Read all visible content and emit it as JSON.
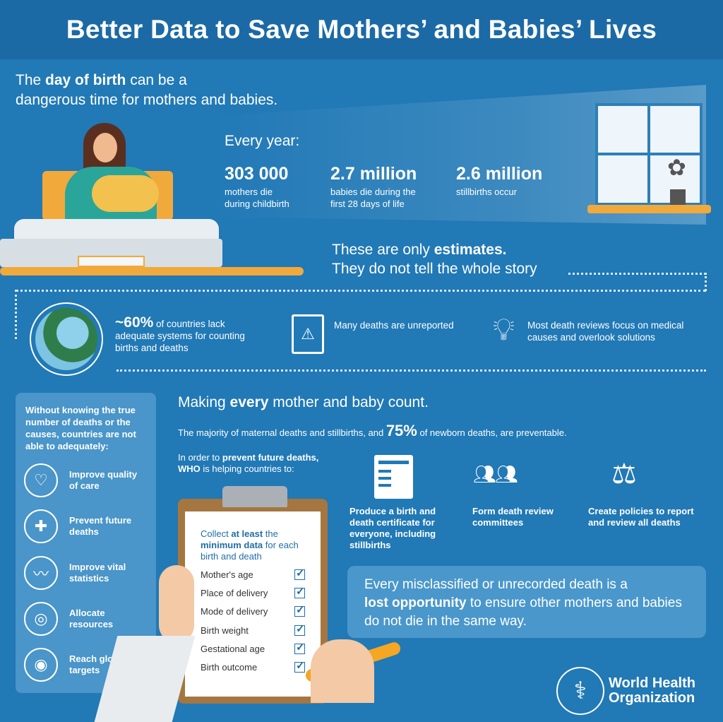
{
  "title": "Better Data to Save Mothers’ and Babies’ Lives",
  "intro": {
    "pre": "The ",
    "bold": "day of birth",
    "post": " can be a",
    "line2": "dangerous time for mothers and babies."
  },
  "every_year": "Every year:",
  "stats": [
    {
      "num": "303 000",
      "label1": "mothers die",
      "label2": "during childbirth"
    },
    {
      "num": "2.7 million",
      "label1": "babies die during the",
      "label2": "first 28 days of life"
    },
    {
      "num": "2.6 million",
      "label1": "stillbirths occur",
      "label2": ""
    }
  ],
  "estimates": {
    "pre": "These are only ",
    "bold": "estimates.",
    "line2": "They do not tell the whole story"
  },
  "facts": [
    {
      "bold": "~60%",
      "text": " of countries lack adequate systems for counting births and deaths",
      "icon": "globe-icon"
    },
    {
      "text": "Many deaths are unreported",
      "icon": "clipboard-warning-icon"
    },
    {
      "text": "Most death reviews focus on medical causes and overlook solutions",
      "icon": "lightbulb-icon"
    }
  ],
  "left_panel": {
    "intro": "Without knowing the true number of deaths or the causes, countries are not able to adequately:",
    "items": [
      {
        "label": "Improve quality of care",
        "icon": "heart-hand-icon"
      },
      {
        "label": "Prevent future deaths",
        "icon": "medical-kit-icon"
      },
      {
        "label": "Improve vital statistics",
        "icon": "heartbeat-icon"
      },
      {
        "label": "Allocate resources",
        "icon": "coins-icon"
      },
      {
        "label": "Reach global targets",
        "icon": "target-icon"
      }
    ]
  },
  "making": {
    "pre": "Making ",
    "bold": "every",
    "post": " mother and baby count."
  },
  "majority": {
    "pre": "The majority of maternal deaths and stillbirths, and ",
    "bold": "75%",
    "post": " of newborn deaths, are preventable."
  },
  "order": {
    "pre": "In order to ",
    "bold": "prevent future deaths,",
    "bold2": "WHO",
    "post": " is helping countries to:"
  },
  "actions": [
    {
      "label": "Produce a birth and death certificate for everyone, including stillbirths",
      "icon": "certificate-icon"
    },
    {
      "label": "Form death review committees",
      "icon": "committee-icon"
    },
    {
      "label": "Create policies to report and review all deaths",
      "icon": "gavel-icon"
    }
  ],
  "clipboard": {
    "pre": "Collect ",
    "bold": "at least",
    "mid": " the ",
    "bold2": "minimum data",
    "post": " for each birth and death",
    "items": [
      "Mother's age",
      "Place of delivery",
      "Mode of delivery",
      "Birth weight",
      "Gestational age",
      "Birth outcome"
    ]
  },
  "lost": {
    "line1": "Every misclassified or unrecorded death is a",
    "bold": "lost opportunity",
    "post": " to ensure other mothers and babies do not die in the same way."
  },
  "who": {
    "line1": "World Health",
    "line2": "Organization"
  },
  "colors": {
    "background": "#2179b6",
    "header": "#1b6aa5",
    "panel": "#4a95c9",
    "accent": "#f5a623"
  }
}
